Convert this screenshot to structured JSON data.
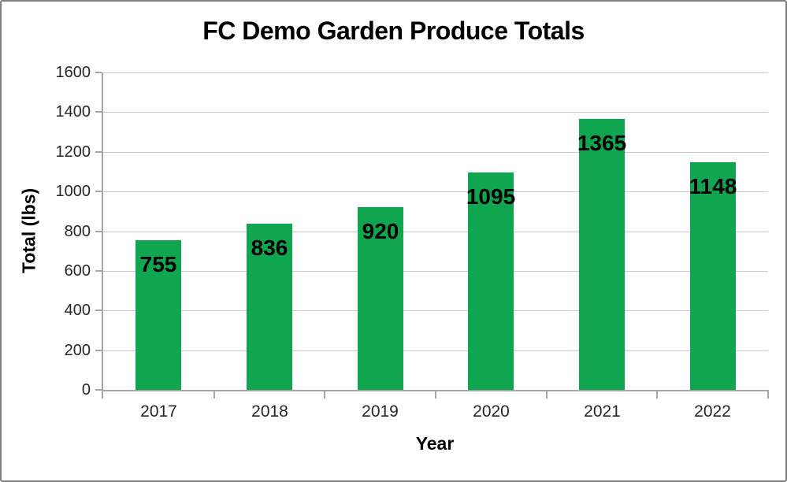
{
  "frame": {
    "background": "#ffffff",
    "border_color": "#7f7f7f"
  },
  "chart_data": {
    "type": "bar",
    "title": "FC Demo Garden Produce Totals",
    "xlabel": "Year",
    "ylabel": "Total (lbs)",
    "categories": [
      "2017",
      "2018",
      "2019",
      "2020",
      "2021",
      "2022"
    ],
    "values": [
      755,
      836,
      920,
      1095,
      1365,
      1148
    ],
    "ylim": [
      0,
      1600
    ],
    "yticks": [
      0,
      200,
      400,
      600,
      800,
      1000,
      1200,
      1400,
      1600
    ],
    "grid": true,
    "legend": "none",
    "data_labels": {
      "show": true,
      "position": "inside-end"
    },
    "bar_color": "#10a64f",
    "gridline_color": "#c9c9c9",
    "axis_color": "#a6a6a6",
    "tick_label_color": "#262626",
    "text_color": "#000000"
  }
}
